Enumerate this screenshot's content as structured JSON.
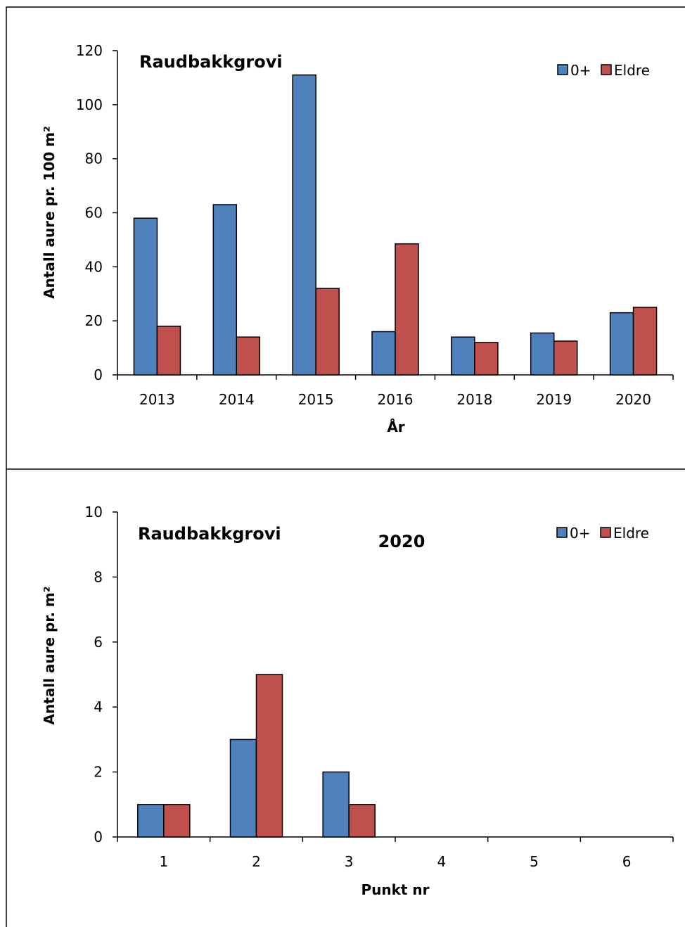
{
  "chart_data": [
    {
      "type": "bar",
      "title": "Raudbakkgrovi",
      "subtitle": "",
      "xlabel": "År",
      "ylabel": "Antall aure pr. 100 m²",
      "categories": [
        "2013",
        "2014",
        "2015",
        "2016",
        "2018",
        "2019",
        "2020"
      ],
      "series": [
        {
          "name": "0+",
          "values": [
            58,
            63,
            111,
            16,
            14,
            15.5,
            23
          ],
          "color": "#4F81BD"
        },
        {
          "name": "Eldre",
          "values": [
            18,
            14,
            32,
            48.5,
            12,
            12.5,
            25
          ],
          "color": "#C0504D"
        }
      ],
      "ylim": [
        0,
        120
      ],
      "yticks": [
        0,
        20,
        40,
        60,
        80,
        100,
        120
      ],
      "grid": false,
      "legend": "top-right"
    },
    {
      "type": "bar",
      "title": "Raudbakkgrovi",
      "subtitle": "2020",
      "xlabel": "Punkt nr",
      "ylabel": "Antall aure pr. m²",
      "categories": [
        "1",
        "2",
        "3",
        "4",
        "5",
        "6"
      ],
      "series": [
        {
          "name": "0+",
          "values": [
            1,
            3,
            2,
            0,
            0,
            0
          ],
          "color": "#4F81BD"
        },
        {
          "name": "Eldre",
          "values": [
            1,
            5,
            1,
            0,
            0,
            0
          ],
          "color": "#C0504D"
        }
      ],
      "ylim": [
        0,
        10
      ],
      "yticks": [
        0,
        2,
        4,
        6,
        8,
        10
      ],
      "grid": false,
      "legend": "top-right"
    }
  ]
}
